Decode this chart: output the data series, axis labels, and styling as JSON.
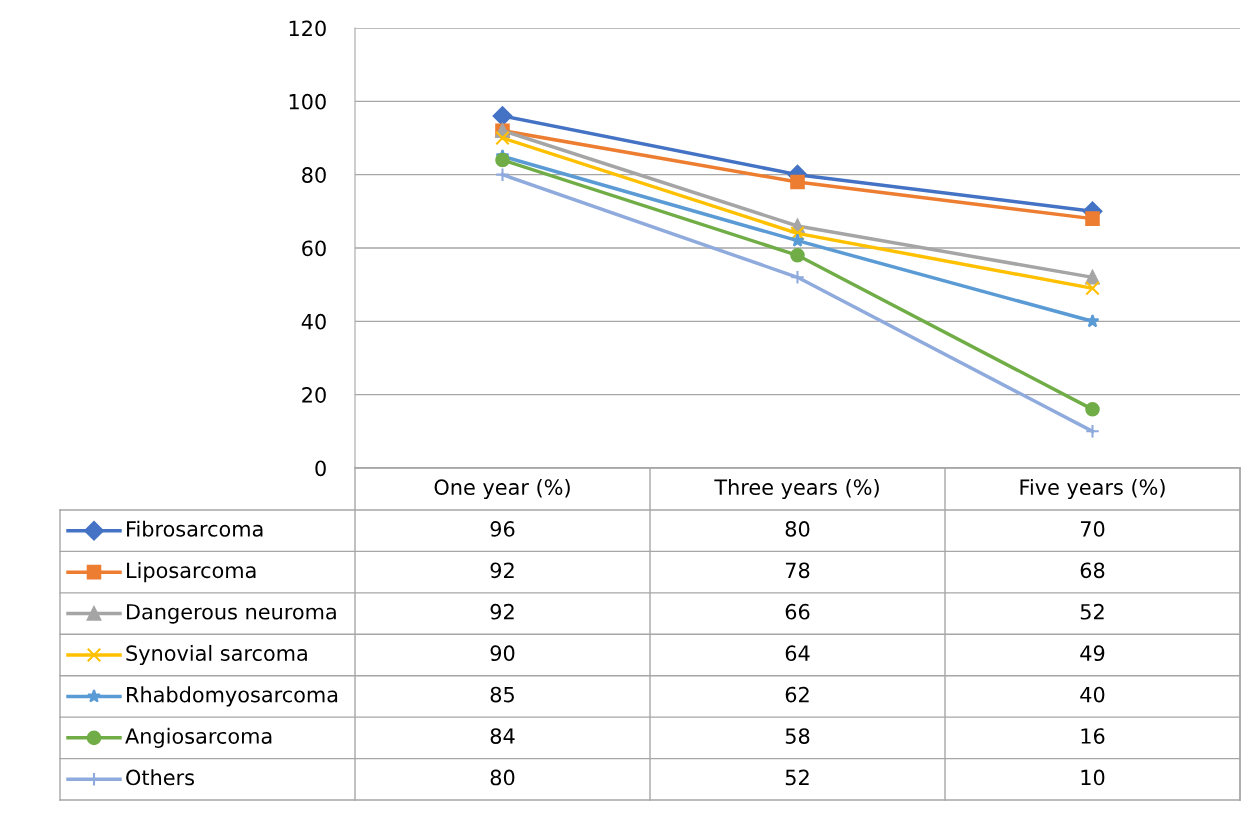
{
  "chart_data": {
    "type": "line",
    "categories": [
      "One year (%)",
      "Three years (%)",
      "Five years (%)"
    ],
    "series": [
      {
        "name": "Fibrosarcoma",
        "color": "#4472c4",
        "marker": "diamond",
        "values": [
          96,
          80,
          70
        ]
      },
      {
        "name": "Liposarcoma",
        "color": "#ed7d31",
        "marker": "square",
        "values": [
          92,
          78,
          68
        ]
      },
      {
        "name": "Dangerous neuroma",
        "color": "#a5a5a5",
        "marker": "triangle",
        "values": [
          92,
          66,
          52
        ]
      },
      {
        "name": "Synovial sarcoma",
        "color": "#ffc000",
        "marker": "cross",
        "values": [
          90,
          64,
          49
        ]
      },
      {
        "name": "Rhabdomyosarcoma",
        "color": "#5b9bd5",
        "marker": "star",
        "values": [
          85,
          62,
          40
        ]
      },
      {
        "name": "Angiosarcoma",
        "color": "#70ad47",
        "marker": "circle",
        "values": [
          84,
          58,
          16
        ]
      },
      {
        "name": "Others",
        "color": "#8faadc",
        "marker": "plus",
        "values": [
          80,
          52,
          10
        ]
      }
    ],
    "ylim": [
      0,
      120
    ],
    "yticks": [
      0,
      20,
      40,
      60,
      80,
      100,
      120
    ],
    "grid": "y",
    "legend": "bottom",
    "data_labels": true,
    "line_style": "solid"
  }
}
